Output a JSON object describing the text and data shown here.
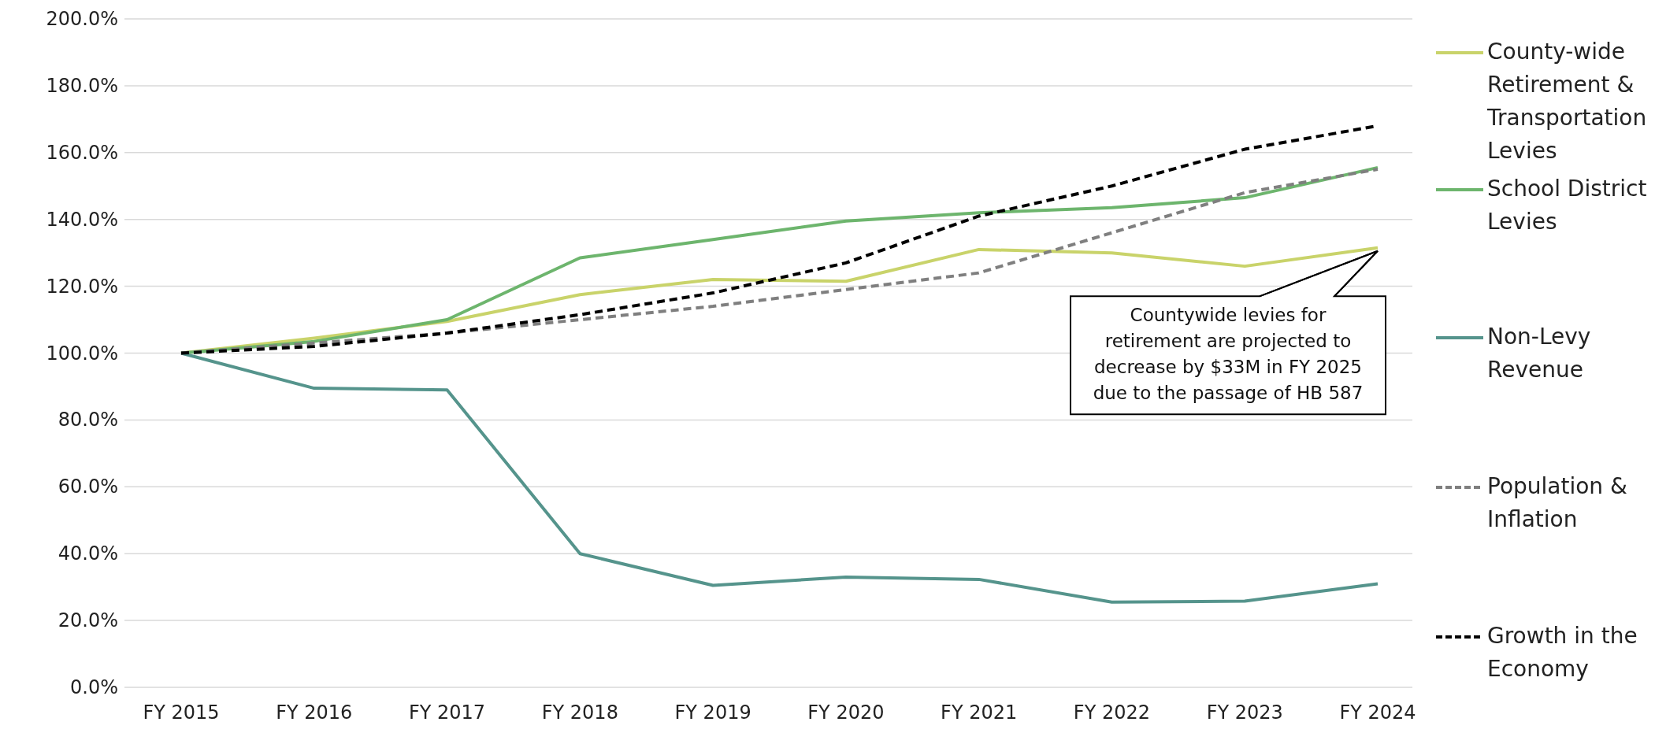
{
  "chart_data": {
    "type": "line",
    "categories": [
      "FY 2015",
      "FY 2016",
      "FY 2017",
      "FY 2018",
      "FY 2019",
      "FY 2020",
      "FY 2021",
      "FY 2022",
      "FY 2023",
      "FY 2024"
    ],
    "series": [
      {
        "name": "County-wide Retirement & Transportation Levies",
        "color": "#c9d36a",
        "line_style": "solid",
        "values": [
          100,
          104.5,
          109.5,
          117.5,
          122,
          121.5,
          131,
          130,
          126,
          131.5
        ]
      },
      {
        "name": "School District Levies",
        "color": "#6db56d",
        "line_style": "solid",
        "values": [
          100,
          103.5,
          110,
          128.5,
          134,
          139.5,
          142,
          143.5,
          146.5,
          155.5
        ]
      },
      {
        "name": "Non-Levy Revenue",
        "color": "#55948c",
        "line_style": "solid",
        "values": [
          100,
          89.5,
          89,
          40,
          30.5,
          33,
          32.3,
          25.5,
          25.8,
          31
        ]
      },
      {
        "name": "Population & Inflation",
        "color": "#7f7f7f",
        "line_style": "dashed",
        "values": [
          100,
          103,
          106,
          110,
          114,
          119,
          124,
          136,
          148,
          155
        ]
      },
      {
        "name": "Growth in the Economy",
        "color": "#000000",
        "line_style": "dashed",
        "values": [
          100,
          102,
          106,
          111.5,
          118,
          127,
          141,
          150,
          161,
          168
        ]
      }
    ],
    "ylim": [
      0,
      200
    ],
    "yticks": [
      {
        "value": 0,
        "label": "0.0%"
      },
      {
        "value": 20,
        "label": "20.0%"
      },
      {
        "value": 40,
        "label": "40.0%"
      },
      {
        "value": 60,
        "label": "60.0%"
      },
      {
        "value": 80,
        "label": "80.0%"
      },
      {
        "value": 100,
        "label": "100.0%"
      },
      {
        "value": 120,
        "label": "120.0%"
      },
      {
        "value": 140,
        "label": "140.0%"
      },
      {
        "value": 160,
        "label": "160.0%"
      },
      {
        "value": 180,
        "label": "180.0%"
      },
      {
        "value": 200,
        "label": "200.0%"
      }
    ],
    "grid": "y",
    "legend": "right",
    "marker": "none",
    "annotations": [
      "Countywide levies for retirement are projected to decrease by $33M in FY 2025 due to the passage of HB 587"
    ]
  }
}
